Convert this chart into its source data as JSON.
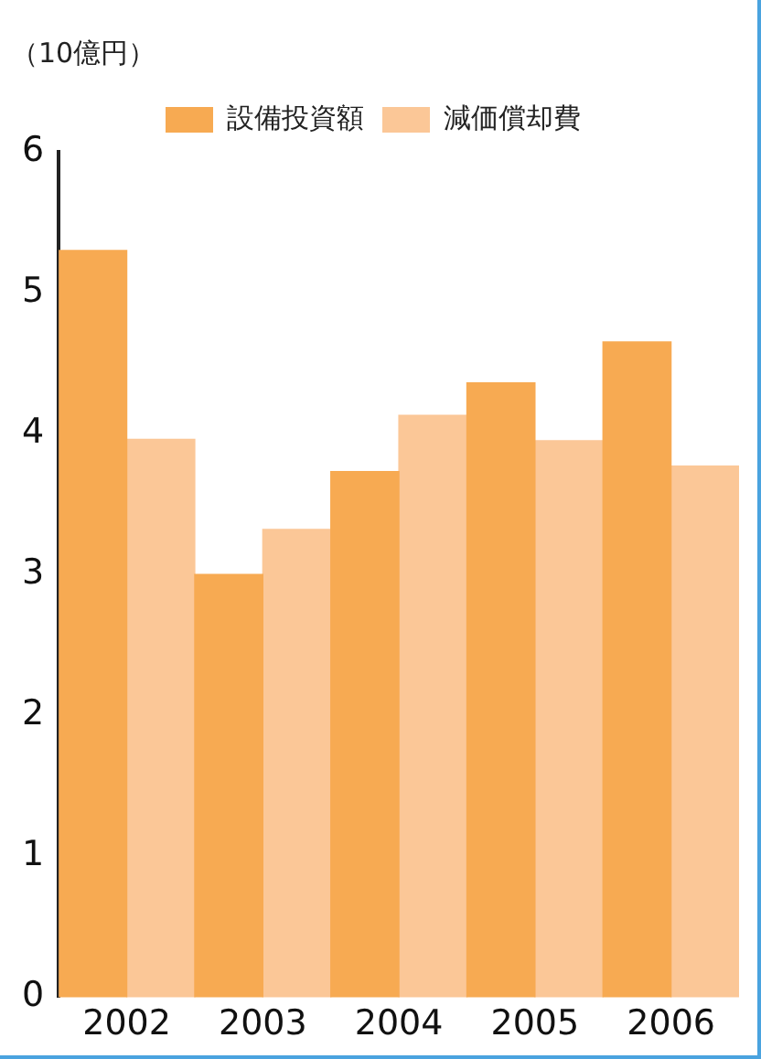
{
  "chart_data": {
    "type": "bar",
    "ylabel": "（10億円）",
    "categories": [
      "2002",
      "2003",
      "2004",
      "2005",
      "2006"
    ],
    "series": [
      {
        "name": "設備投資額",
        "color": "#f7aa52",
        "values": [
          5.3,
          3.0,
          3.73,
          4.36,
          4.65
        ]
      },
      {
        "name": "減価償却費",
        "color": "#fbc797",
        "values": [
          3.96,
          3.32,
          4.13,
          3.95,
          3.77
        ]
      }
    ],
    "ylim": [
      0,
      6
    ],
    "yticks": [
      0,
      1,
      2,
      3,
      4,
      5,
      6
    ],
    "grid": false,
    "legend": "top"
  }
}
